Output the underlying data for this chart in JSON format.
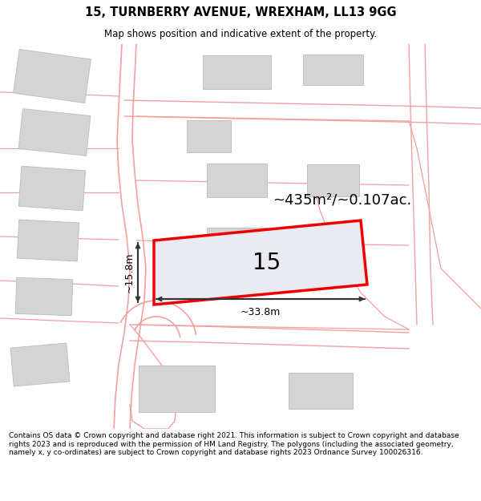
{
  "title": "15, TURNBERRY AVENUE, WREXHAM, LL13 9GG",
  "subtitle": "Map shows position and indicative extent of the property.",
  "footer": "Contains OS data © Crown copyright and database right 2021. This information is subject to Crown copyright and database rights 2023 and is reproduced with the permission of HM Land Registry. The polygons (including the associated geometry, namely x, y co-ordinates) are subject to Crown copyright and database rights 2023 Ordnance Survey 100026316.",
  "area_label": "~435m²/~0.107ac.",
  "width_label": "~33.8m",
  "height_label": "~15.8m",
  "plot_number": "15",
  "bg_color": "#ffffff",
  "map_bg": "#ffffff",
  "road_color": "#f2a0a0",
  "building_color": "#d4d4d4",
  "building_edge": "#c0c0c0",
  "highlight_color": "#ee0000",
  "highlight_fill": "#eaeaf2",
  "title_fontsize": 10.5,
  "subtitle_fontsize": 8.5,
  "footer_fontsize": 6.5
}
